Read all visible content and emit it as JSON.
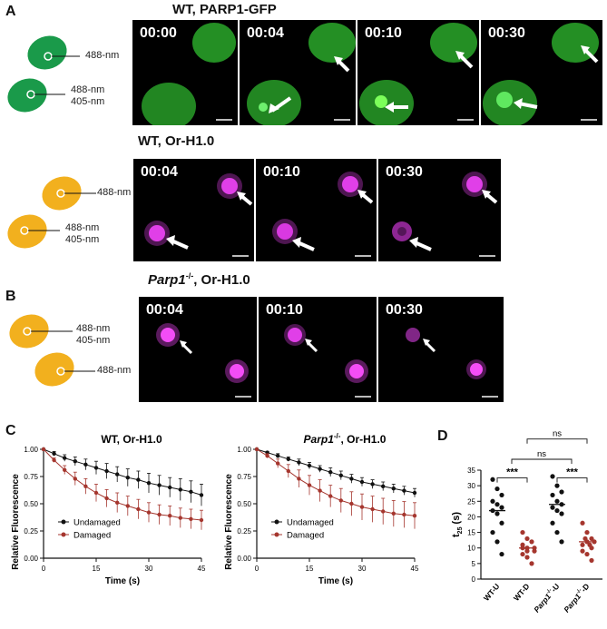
{
  "panel_labels": {
    "a": "A",
    "b": "B",
    "c": "C",
    "d": "D"
  },
  "panel_a": {
    "title_top": "WT,  PARP1-GFP",
    "title_bottom": "WT,  Or-H1.0",
    "cell_labels": {
      "single": "488-nm",
      "dual_line1": "488-nm",
      "dual_line2": "405-nm"
    },
    "top_timestamps": [
      "00:00",
      "00:04",
      "00:10",
      "00:30"
    ],
    "bottom_timestamps": [
      "00:04",
      "00:10",
      "00:30"
    ],
    "colors": {
      "gfp_cell": "#1a9a4a",
      "orh1_cell": "#f2b01e",
      "gfp_signal": "#3dd13d",
      "orh1_signal": "#e040e8"
    }
  },
  "panel_b": {
    "title_italic": "Parp1",
    "title_sup": "-/-",
    "title_rest": ",  Or-H1.0",
    "cell_labels": {
      "dual_line1": "488-nm",
      "dual_line2": "405-nm",
      "single": "488-nm"
    },
    "timestamps": [
      "00:04",
      "00:10",
      "00:30"
    ]
  },
  "panel_c": {
    "plots": [
      {
        "title": "WT,  Or-H1.0",
        "title_italic": ""
      },
      {
        "title": "Or-H1.0",
        "title_italic": "Parp1",
        "title_sup": "-/-"
      }
    ],
    "ylabel": "Relative Fluorescence",
    "xlabel": "Time (s)",
    "legend": [
      "Undamaged",
      "Damaged"
    ]
  },
  "panel_d": {
    "ylabel": "t",
    "ylabel_sub": "25",
    "ylabel_unit": "(s)",
    "categories": [
      "WT-U",
      "WT-D",
      "Parp1-/--U",
      "Parp1-/--D"
    ],
    "sig_labels": {
      "ns_top": "ns",
      "ns_mid": "ns",
      "wt": "***",
      "ko": "***"
    }
  },
  "chart_data": [
    {
      "type": "line",
      "title": "WT,  Or-H1.0",
      "xlabel": "Time (s)",
      "ylabel": "Relative Fluorescence",
      "xlim": [
        0,
        45
      ],
      "ylim": [
        0,
        1.0
      ],
      "x_ticks": [
        0,
        15,
        30,
        45
      ],
      "y_ticks": [
        0.0,
        0.25,
        0.5,
        0.75,
        1.0
      ],
      "x": [
        0,
        3,
        6,
        9,
        12,
        15,
        18,
        21,
        24,
        27,
        30,
        33,
        36,
        39,
        42,
        45
      ],
      "series": [
        {
          "name": "Undamaged",
          "color": "#111111",
          "values": [
            1.0,
            0.96,
            0.92,
            0.89,
            0.86,
            0.83,
            0.8,
            0.77,
            0.74,
            0.72,
            0.69,
            0.67,
            0.65,
            0.63,
            0.61,
            0.58
          ],
          "error": [
            0,
            0.02,
            0.03,
            0.04,
            0.05,
            0.06,
            0.07,
            0.07,
            0.08,
            0.08,
            0.09,
            0.09,
            0.09,
            0.1,
            0.1,
            0.1
          ]
        },
        {
          "name": "Damaged",
          "color": "#a5362e",
          "values": [
            1.0,
            0.9,
            0.81,
            0.73,
            0.66,
            0.6,
            0.55,
            0.51,
            0.48,
            0.45,
            0.42,
            0.4,
            0.39,
            0.37,
            0.36,
            0.35
          ],
          "error": [
            0,
            0.02,
            0.04,
            0.06,
            0.07,
            0.08,
            0.08,
            0.09,
            0.09,
            0.09,
            0.09,
            0.09,
            0.09,
            0.09,
            0.09,
            0.09
          ]
        }
      ]
    },
    {
      "type": "line",
      "title": "Parp1-/-,  Or-H1.0",
      "xlabel": "Time (s)",
      "ylabel": "Relative Fluorescence",
      "xlim": [
        0,
        45
      ],
      "ylim": [
        0,
        1.0
      ],
      "x_ticks": [
        0,
        15,
        30,
        45
      ],
      "y_ticks": [
        0.0,
        0.25,
        0.5,
        0.75,
        1.0
      ],
      "x": [
        0,
        3,
        6,
        9,
        12,
        15,
        18,
        21,
        24,
        27,
        30,
        33,
        36,
        39,
        42,
        45
      ],
      "series": [
        {
          "name": "Undamaged",
          "color": "#111111",
          "values": [
            1.0,
            0.97,
            0.94,
            0.91,
            0.88,
            0.85,
            0.82,
            0.79,
            0.76,
            0.73,
            0.7,
            0.68,
            0.66,
            0.64,
            0.62,
            0.6
          ],
          "error": [
            0,
            0.01,
            0.02,
            0.02,
            0.03,
            0.03,
            0.03,
            0.04,
            0.04,
            0.04,
            0.04,
            0.04,
            0.04,
            0.04,
            0.04,
            0.04
          ]
        },
        {
          "name": "Damaged",
          "color": "#a5362e",
          "values": [
            1.0,
            0.94,
            0.87,
            0.8,
            0.73,
            0.67,
            0.62,
            0.57,
            0.53,
            0.5,
            0.47,
            0.45,
            0.43,
            0.41,
            0.4,
            0.39
          ],
          "error": [
            0,
            0.02,
            0.04,
            0.06,
            0.08,
            0.09,
            0.1,
            0.1,
            0.11,
            0.11,
            0.12,
            0.12,
            0.12,
            0.12,
            0.12,
            0.12
          ]
        }
      ]
    },
    {
      "type": "scatter",
      "ylabel": "t25 (s)",
      "ylim": [
        0,
        35
      ],
      "y_ticks": [
        0,
        5,
        10,
        15,
        20,
        25,
        30,
        35
      ],
      "categories": [
        "WT-U",
        "WT-D",
        "Parp1-/--U",
        "Parp1-/--D"
      ],
      "series": [
        {
          "name": "WT-U",
          "color": "#111111",
          "mean": 22,
          "values": [
            32,
            29,
            27,
            25,
            24,
            23,
            22,
            21,
            18,
            15,
            12,
            8
          ]
        },
        {
          "name": "WT-D",
          "color": "#a5362e",
          "mean": 10,
          "values": [
            15,
            13,
            12,
            11,
            10,
            10,
            10,
            9,
            9,
            8,
            7,
            5
          ]
        },
        {
          "name": "Parp1-/--U",
          "color": "#111111",
          "mean": 24,
          "values": [
            33,
            30,
            28,
            27,
            25,
            24,
            23,
            22,
            21,
            18,
            15,
            12
          ]
        },
        {
          "name": "Parp1-/--D",
          "color": "#a5362e",
          "mean": 12,
          "values": [
            18,
            15,
            13,
            13,
            12,
            12,
            11,
            11,
            10,
            9,
            8,
            6
          ]
        }
      ]
    }
  ]
}
